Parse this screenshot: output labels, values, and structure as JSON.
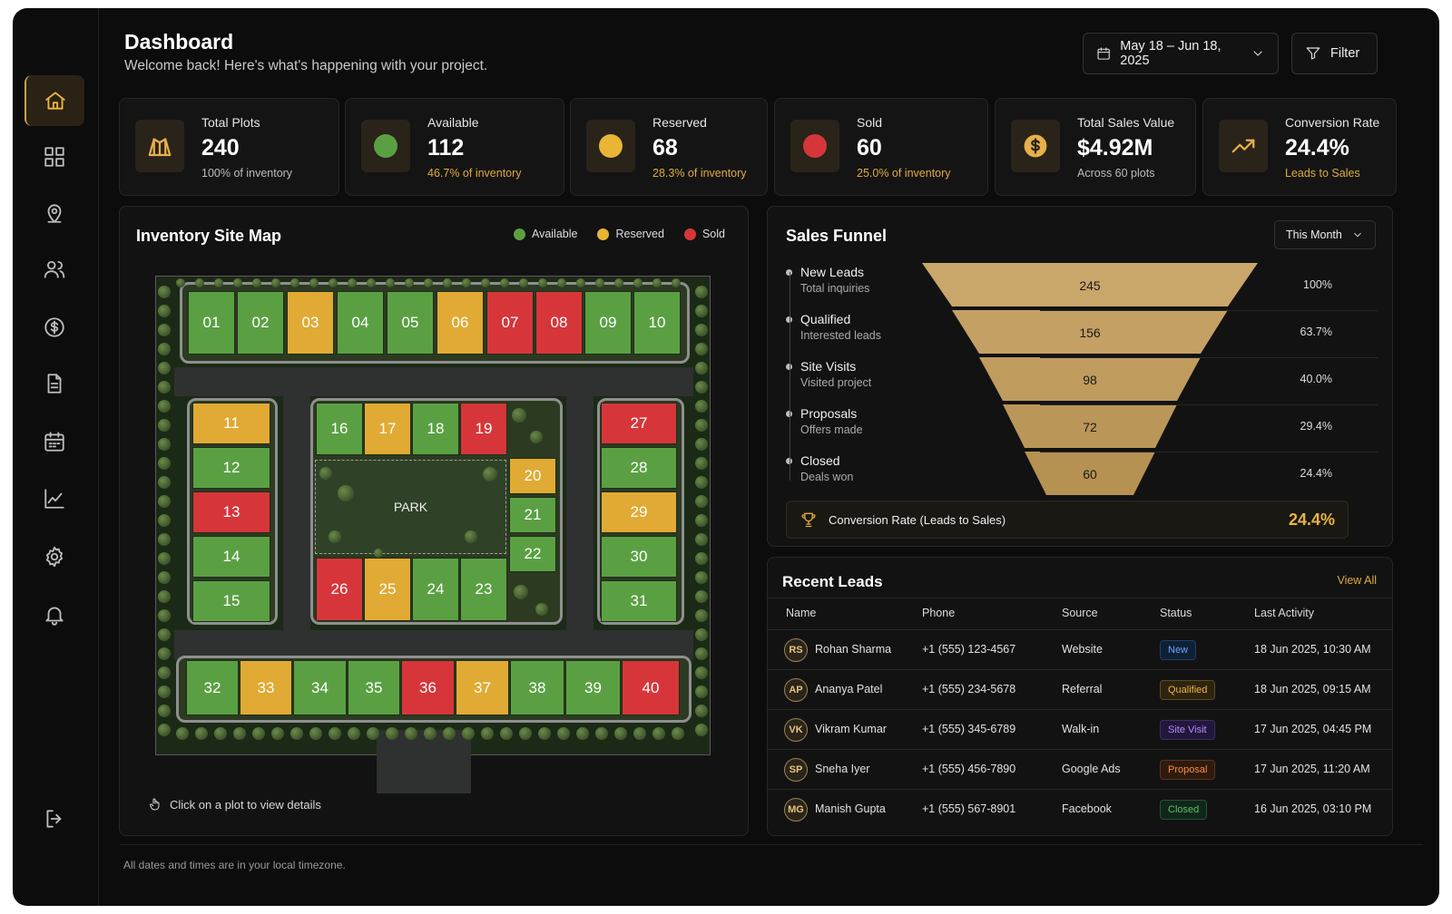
{
  "header": {
    "title": "Dashboard",
    "subtitle": "Welcome back! Here's what's happening with your project.",
    "date_range": "May 18 – Jun 18, 2025",
    "filter_label": "Filter"
  },
  "sidebar": {
    "items": [
      {
        "icon": "home-icon",
        "active": true
      },
      {
        "icon": "grid-icon"
      },
      {
        "icon": "map-pin-icon"
      },
      {
        "icon": "users-icon"
      },
      {
        "icon": "dollar-icon"
      },
      {
        "icon": "document-icon"
      },
      {
        "icon": "calendar-icon"
      },
      {
        "icon": "chart-icon"
      },
      {
        "icon": "gear-icon"
      },
      {
        "icon": "bell-icon"
      }
    ],
    "logout_icon": "logout-icon"
  },
  "stats": [
    {
      "label": "Total Plots",
      "value": "240",
      "sub": "100% of inventory",
      "icon": "map-icon"
    },
    {
      "label": "Available",
      "value": "112",
      "sub": "46.7% of inventory",
      "color": "#5aa043"
    },
    {
      "label": "Reserved",
      "value": "68",
      "sub": "28.3% of inventory",
      "color": "#e8b534"
    },
    {
      "label": "Sold",
      "value": "60",
      "sub": "25.0% of inventory",
      "color": "#d6363a"
    },
    {
      "label": "Total Sales Value",
      "value": "$4.92M",
      "sub": "Across 60 plots",
      "icon": "dollar-icon"
    },
    {
      "label": "Conversion Rate",
      "value": "24.4%",
      "sub": "Leads to Sales",
      "icon": "trending-up-icon"
    }
  ],
  "site_map": {
    "title": "Inventory Site Map",
    "legend": [
      {
        "label": "Available",
        "color": "#5aa043"
      },
      {
        "label": "Reserved",
        "color": "#e8b534"
      },
      {
        "label": "Sold",
        "color": "#d6363a"
      }
    ],
    "park_label": "PARK",
    "hint": "Click on a plot to view details",
    "plots": [
      {
        "id": "01",
        "status": "av"
      },
      {
        "id": "02",
        "status": "av"
      },
      {
        "id": "03",
        "status": "re"
      },
      {
        "id": "04",
        "status": "av"
      },
      {
        "id": "05",
        "status": "av"
      },
      {
        "id": "06",
        "status": "re"
      },
      {
        "id": "07",
        "status": "so"
      },
      {
        "id": "08",
        "status": "so"
      },
      {
        "id": "09",
        "status": "av"
      },
      {
        "id": "10",
        "status": "av"
      },
      {
        "id": "11",
        "status": "re"
      },
      {
        "id": "12",
        "status": "av"
      },
      {
        "id": "13",
        "status": "so"
      },
      {
        "id": "14",
        "status": "av"
      },
      {
        "id": "15",
        "status": "av"
      },
      {
        "id": "16",
        "status": "av"
      },
      {
        "id": "17",
        "status": "re"
      },
      {
        "id": "18",
        "status": "av"
      },
      {
        "id": "19",
        "status": "so"
      },
      {
        "id": "20",
        "status": "re"
      },
      {
        "id": "21",
        "status": "av"
      },
      {
        "id": "22",
        "status": "av"
      },
      {
        "id": "23",
        "status": "av"
      },
      {
        "id": "24",
        "status": "av"
      },
      {
        "id": "25",
        "status": "re"
      },
      {
        "id": "26",
        "status": "so"
      },
      {
        "id": "27",
        "status": "so"
      },
      {
        "id": "28",
        "status": "av"
      },
      {
        "id": "29",
        "status": "re"
      },
      {
        "id": "30",
        "status": "av"
      },
      {
        "id": "31",
        "status": "av"
      },
      {
        "id": "32",
        "status": "av"
      },
      {
        "id": "33",
        "status": "re"
      },
      {
        "id": "34",
        "status": "av"
      },
      {
        "id": "35",
        "status": "av"
      },
      {
        "id": "36",
        "status": "so"
      },
      {
        "id": "37",
        "status": "re"
      },
      {
        "id": "38",
        "status": "av"
      },
      {
        "id": "39",
        "status": "av"
      },
      {
        "id": "40",
        "status": "so"
      }
    ]
  },
  "funnel": {
    "title": "Sales Funnel",
    "period": "This Month",
    "stages": [
      {
        "name": "New Leads",
        "desc": "Total inquiries",
        "value": "245",
        "pct": "100%"
      },
      {
        "name": "Qualified",
        "desc": "Interested leads",
        "value": "156",
        "pct": "63.7%"
      },
      {
        "name": "Site Visits",
        "desc": "Visited project",
        "value": "98",
        "pct": "40.0%"
      },
      {
        "name": "Proposals",
        "desc": "Offers made",
        "value": "72",
        "pct": "29.4%"
      },
      {
        "name": "Closed",
        "desc": "Deals won",
        "value": "60",
        "pct": "24.4%"
      }
    ],
    "conversion_label": "Conversion Rate (Leads to Sales)",
    "conversion_value": "24.4%"
  },
  "leads": {
    "title": "Recent Leads",
    "view_all": "View All",
    "columns": [
      "Name",
      "Phone",
      "Source",
      "Status",
      "Last Activity"
    ],
    "rows": [
      {
        "initials": "RS",
        "name": "Rohan Sharma",
        "phone": "+1 (555) 123-4567",
        "source": "Website",
        "status": "New",
        "status_kind": "new",
        "activity": "18 Jun 2025, 10:30 AM"
      },
      {
        "initials": "AP",
        "name": "Ananya Patel",
        "phone": "+1 (555) 234-5678",
        "source": "Referral",
        "status": "Qualified",
        "status_kind": "qual",
        "activity": "18 Jun 2025, 09:15 AM"
      },
      {
        "initials": "VK",
        "name": "Vikram Kumar",
        "phone": "+1 (555) 345-6789",
        "source": "Walk-in",
        "status": "Site Visit",
        "status_kind": "site",
        "activity": "17 Jun 2025, 04:45 PM"
      },
      {
        "initials": "SP",
        "name": "Sneha Iyer",
        "phone": "+1 (555) 456-7890",
        "source": "Google Ads",
        "status": "Proposal",
        "status_kind": "prop",
        "activity": "17 Jun 2025, 11:20 AM"
      },
      {
        "initials": "MG",
        "name": "Manish Gupta",
        "phone": "+1 (555) 567-8901",
        "source": "Facebook",
        "status": "Closed",
        "status_kind": "clo",
        "activity": "16 Jun 2025, 03:10 PM"
      }
    ]
  },
  "footer": "All dates and times are in your local timezone."
}
